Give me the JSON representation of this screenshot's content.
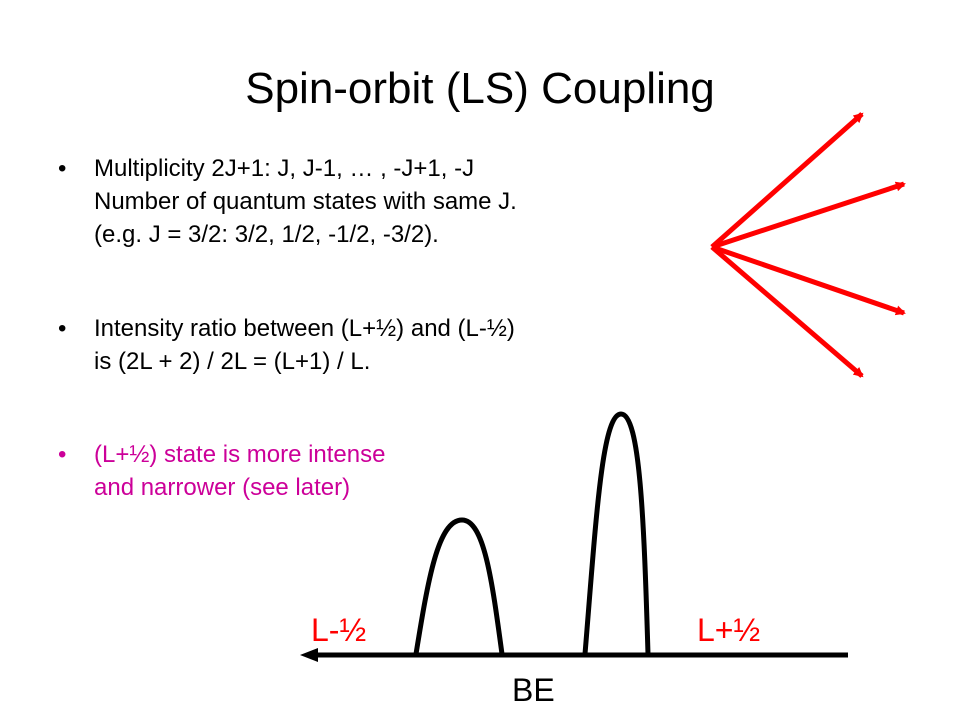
{
  "slide": {
    "title": "Spin-orbit (LS) Coupling",
    "bullet_symbol": "•",
    "bullets": [
      {
        "lines": [
          "Multiplicity 2J+1: J, J-1, … , -J+1, -J",
          "Number of quantum states with same J.",
          "(e.g. J = 3/2: 3/2, 1/2, -1/2, -3/2)."
        ]
      },
      {
        "lines": [
          "Intensity ratio between (L+½)  and (L-½)",
          "is (2L + 2) / 2L = (L+1) / L."
        ]
      },
      {
        "lines": [
          "(L+½) state is more intense",
          "and narrower (see later)"
        ],
        "color": "#cc0099"
      }
    ]
  },
  "diagram": {
    "peak_labels": {
      "left": "L-½",
      "right": "L+½"
    },
    "axis_label": "BE",
    "colors": {
      "arrows": "#ff0000",
      "curves": "#000000",
      "labels": "#ff0000"
    }
  }
}
